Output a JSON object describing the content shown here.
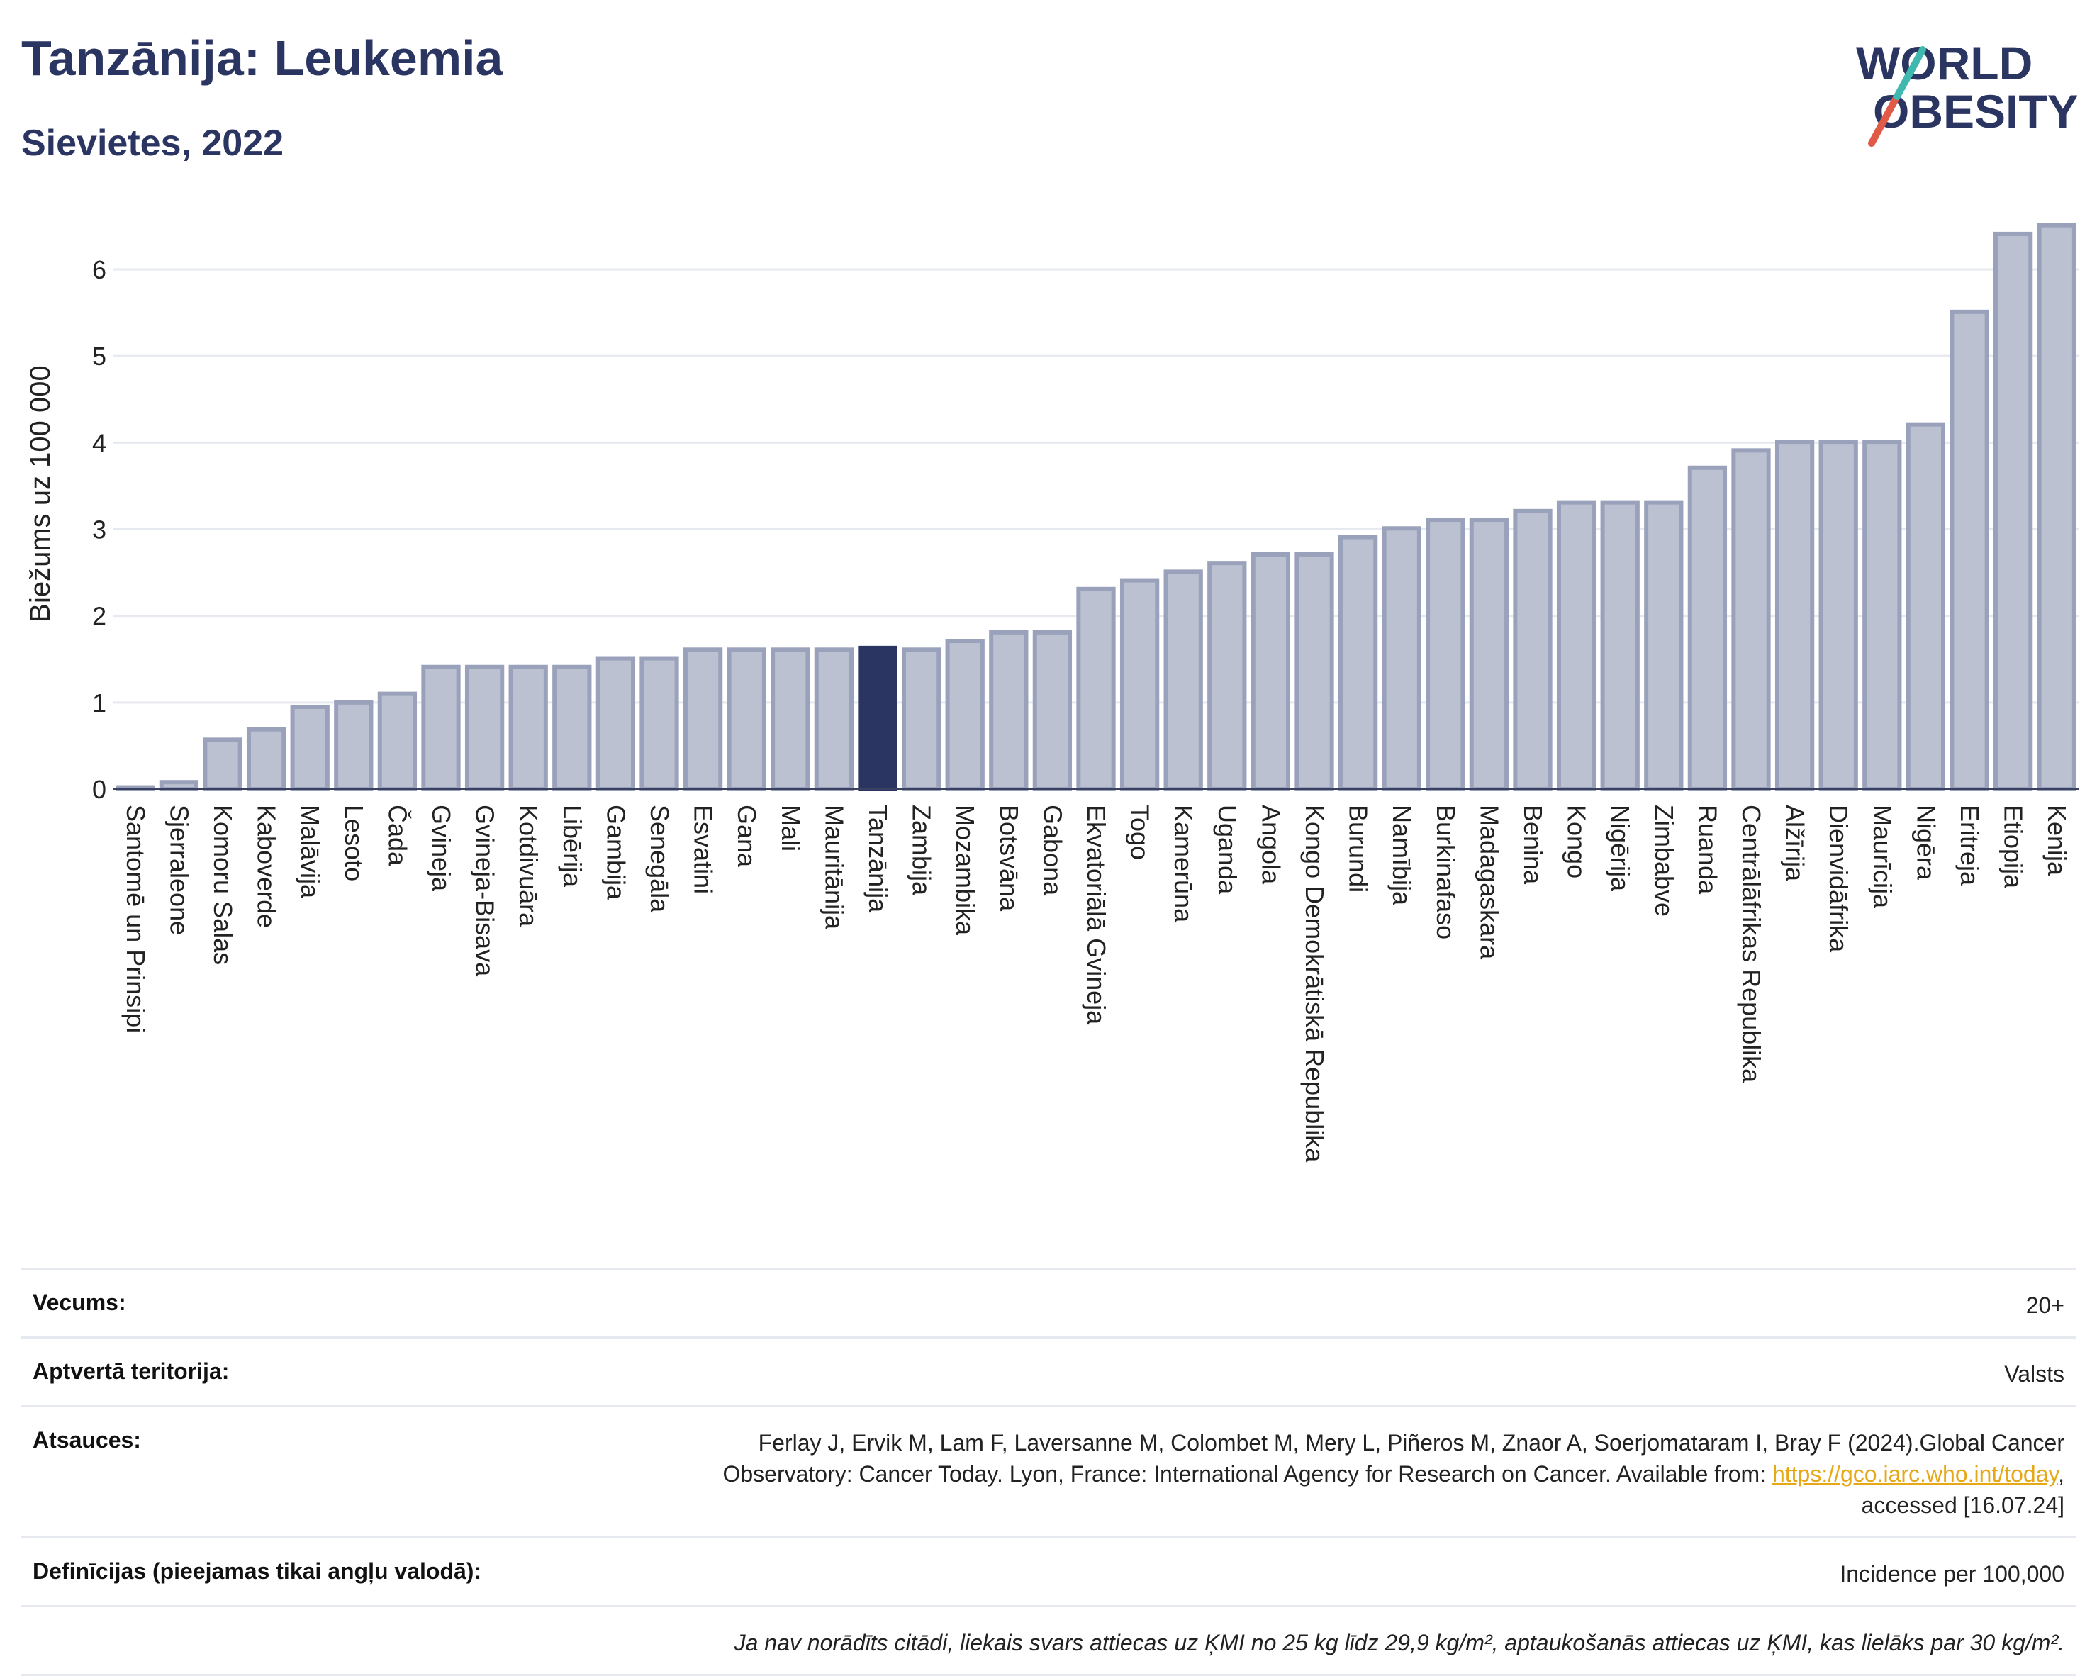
{
  "header": {
    "title": "Tanzānija: Leukemia",
    "subtitle": "Sievietes, 2022"
  },
  "logo": {
    "line1": "WORLD",
    "line2": "OBESITY"
  },
  "chart_data": {
    "type": "bar",
    "ylabel": "Biežums uz 100 000",
    "ylim": [
      0,
      6.6
    ],
    "yticks": [
      0,
      1,
      2,
      3,
      4,
      5,
      6
    ],
    "grid": true,
    "highlight": "Tanzānija",
    "colors": {
      "bar": "#bcc1d1",
      "bar_border": "#9aa1bb",
      "highlight": "#2b3561",
      "grid": "#e6e9f0",
      "axis": "#3a4060"
    },
    "categories": [
      "Santomē un Prinsipi",
      "Sjerraleone",
      "Komoru Salas",
      "Kaboverde",
      "Malāvija",
      "Lesoto",
      "Čada",
      "Gvineja",
      "Gvineja-Bisava",
      "Kotdivuāra",
      "Libērija",
      "Gambija",
      "Senegāla",
      "Esvatini",
      "Gana",
      "Mali",
      "Mauritānija",
      "Tanzānija",
      "Zambija",
      "Mozambika",
      "Botsvāna",
      "Gabona",
      "Ekvatoriālā Gvineja",
      "Togo",
      "Kamerūna",
      "Uganda",
      "Angola",
      "Kongo Demokrātiskā Republika",
      "Burundi",
      "Namībija",
      "Burkinafaso",
      "Madagaskara",
      "Benina",
      "Kongo",
      "Nigērija",
      "Zimbabve",
      "Ruanda",
      "Centrālāfrikas Republika",
      "Alžīrija",
      "Dienvidāfrika",
      "Maurīcija",
      "Nigēra",
      "Eritreja",
      "Etiopija",
      "Kenija"
    ],
    "values": [
      0.02,
      0.08,
      0.57,
      0.69,
      0.95,
      1.0,
      1.1,
      1.41,
      1.41,
      1.41,
      1.41,
      1.51,
      1.51,
      1.61,
      1.61,
      1.61,
      1.61,
      1.63,
      1.61,
      1.71,
      1.81,
      1.81,
      2.31,
      2.41,
      2.51,
      2.61,
      2.71,
      2.71,
      2.91,
      3.01,
      3.11,
      3.11,
      3.21,
      3.31,
      3.31,
      3.31,
      3.71,
      3.91,
      4.01,
      4.01,
      4.01,
      4.21,
      5.51,
      6.41,
      6.51
    ]
  },
  "info": {
    "rows": [
      {
        "label": "Vecums:",
        "value": "20+"
      },
      {
        "label": "Aptvertā teritorija:",
        "value": "Valsts"
      },
      {
        "label": "Atsauces:",
        "value_line1": "Ferlay J, Ervik M, Lam F, Laversanne M, Colombet M, Mery L, Piñeros M, Znaor A, Soerjomataram I, Bray F (2024).Global Cancer",
        "value_line2_prefix": "Observatory: Cancer Today. Lyon, France: International Agency for Research on Cancer. Available from: ",
        "link": "https://gco.iarc.who.int/today",
        "value_line2_suffix": ",",
        "value_line3": "accessed [16.07.24]"
      },
      {
        "label": "Definīcijas (pieejamas tikai angļu valodā):",
        "value": "Incidence per 100,000"
      }
    ],
    "note": "Ja nav norādīts citādi, liekais svars attiecas uz ĶMI no 25 kg līdz 29,9 kg/m², aptaukošanās attiecas uz ĶMI, kas lielāks par 30 kg/m²."
  }
}
